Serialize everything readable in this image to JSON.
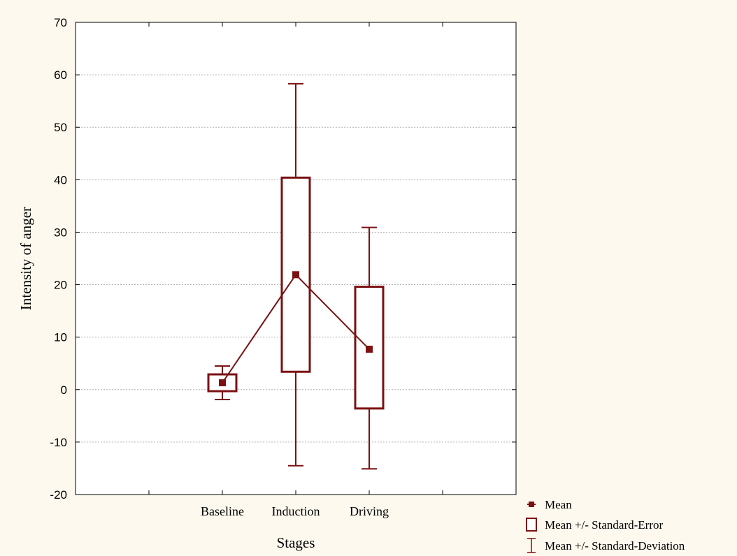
{
  "chart_data": {
    "type": "box",
    "title": "",
    "xlabel": "Stages",
    "ylabel": "Intensity of anger",
    "ylim": [
      -20,
      70
    ],
    "yticks": [
      -20,
      -10,
      0,
      10,
      20,
      30,
      40,
      50,
      60,
      70
    ],
    "grid": "horizontal-dashed",
    "categories": [
      "Baseline",
      "Induction",
      "Driving"
    ],
    "mean": [
      1.3,
      21.9,
      7.7
    ],
    "se_lower": [
      -0.3,
      3.4,
      -3.6
    ],
    "se_upper": [
      2.9,
      40.4,
      19.6
    ],
    "sd_lower": [
      -1.9,
      -14.5,
      -15.1
    ],
    "sd_upper": [
      4.5,
      58.3,
      30.9
    ],
    "color": "#7b1113",
    "legend": {
      "position": "bottom-right",
      "items": [
        {
          "label": "Mean",
          "marker": "square"
        },
        {
          "label": "Mean +/- Standard-Error",
          "marker": "box"
        },
        {
          "label": "Mean +/- Standard-Deviation",
          "marker": "whisker"
        }
      ]
    }
  }
}
